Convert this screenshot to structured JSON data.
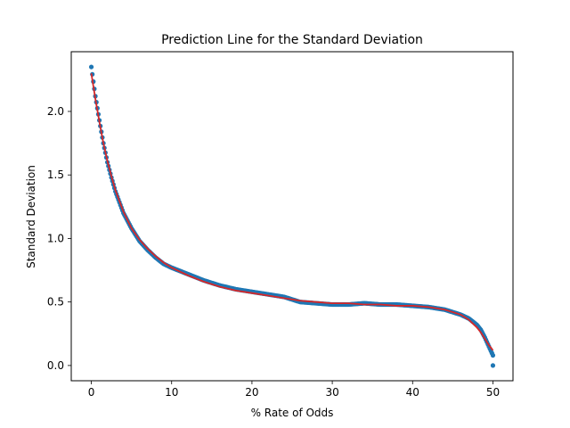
{
  "chart_data": {
    "type": "scatter",
    "title": "Prediction Line for the Standard Deviation",
    "xlabel": "% Rate of Odds",
    "ylabel": "Standard Deviation",
    "xlim": [
      -2.5,
      52.5
    ],
    "ylim": [
      -0.12,
      2.47
    ],
    "xticks": [
      0,
      10,
      20,
      30,
      40,
      50
    ],
    "yticks": [
      0.0,
      0.5,
      1.0,
      1.5,
      2.0
    ],
    "xtick_labels": [
      "0",
      "10",
      "20",
      "30",
      "40",
      "50"
    ],
    "ytick_labels": [
      "0.0",
      "0.5",
      "1.0",
      "1.5",
      "2.0"
    ],
    "grid": false,
    "colors": {
      "scatter": "#1f77b4",
      "line": "#d62728"
    },
    "series": [
      {
        "kind": "scatter",
        "x": [
          0.0,
          0.5,
          1.0,
          1.5,
          2.0,
          2.5,
          3.0,
          4.0,
          5.0,
          6.0,
          7.0,
          8.0,
          9.0,
          10.0,
          12.0,
          14.0,
          16.0,
          18.0,
          20.0,
          22.0,
          24.0,
          26.0,
          28.0,
          30.0,
          32.0,
          34.0,
          36.0,
          38.0,
          40.0,
          42.0,
          44.0,
          45.0,
          46.0,
          47.0,
          48.0,
          48.5,
          49.0,
          49.5,
          50.0,
          50.0
        ],
        "y": [
          2.35,
          2.12,
          1.93,
          1.75,
          1.6,
          1.48,
          1.37,
          1.2,
          1.08,
          0.98,
          0.91,
          0.85,
          0.8,
          0.77,
          0.72,
          0.67,
          0.63,
          0.6,
          0.58,
          0.56,
          0.54,
          0.5,
          0.49,
          0.48,
          0.48,
          0.49,
          0.48,
          0.48,
          0.47,
          0.46,
          0.44,
          0.42,
          0.4,
          0.37,
          0.32,
          0.28,
          0.22,
          0.15,
          0.08,
          0.0
        ]
      },
      {
        "kind": "line",
        "x": [
          0.0,
          0.5,
          1.0,
          1.5,
          2.0,
          2.5,
          3.0,
          4.0,
          5.0,
          6.0,
          7.0,
          8.0,
          9.0,
          10.0,
          12.0,
          14.0,
          16.0,
          18.0,
          20.0,
          22.0,
          24.0,
          26.0,
          28.0,
          30.0,
          32.0,
          34.0,
          36.0,
          38.0,
          40.0,
          42.0,
          44.0,
          45.0,
          46.0,
          47.0,
          48.0,
          48.5,
          49.0,
          49.5,
          50.0
        ],
        "y": [
          2.3,
          2.1,
          1.92,
          1.75,
          1.61,
          1.49,
          1.38,
          1.21,
          1.08,
          0.99,
          0.92,
          0.86,
          0.81,
          0.77,
          0.71,
          0.66,
          0.62,
          0.59,
          0.57,
          0.55,
          0.53,
          0.51,
          0.5,
          0.49,
          0.49,
          0.48,
          0.48,
          0.47,
          0.47,
          0.46,
          0.44,
          0.42,
          0.4,
          0.36,
          0.3,
          0.26,
          0.21,
          0.16,
          0.12
        ]
      }
    ]
  }
}
